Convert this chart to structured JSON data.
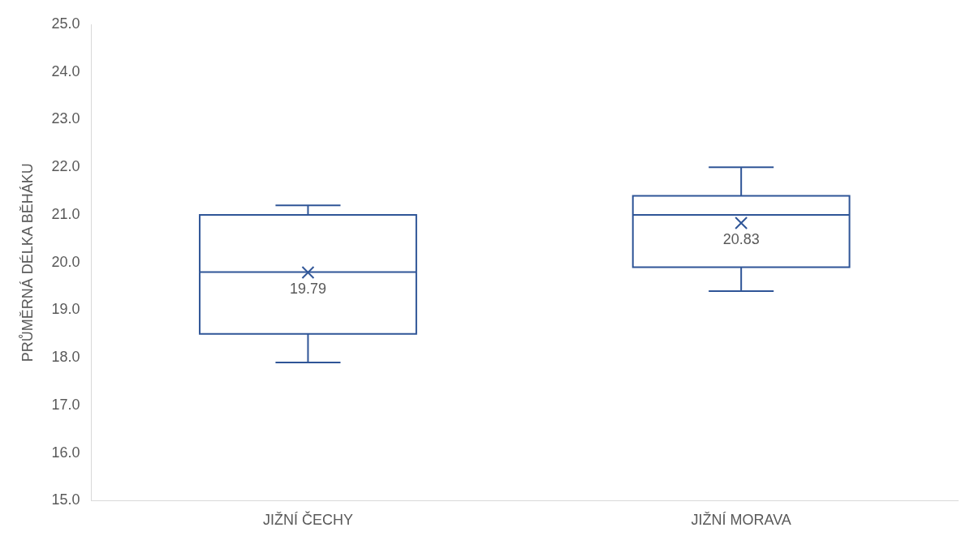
{
  "chart_data": {
    "type": "box",
    "ylabel": "PRŮMĚRNÁ DÉLKA BĚHÁKU",
    "categories": [
      "JIŽNÍ ČECHY",
      "JIŽNÍ MORAVA"
    ],
    "color": "#2f5597",
    "boxes": [
      {
        "low": 17.9,
        "q1": 18.5,
        "median": 19.8,
        "q3": 21.0,
        "high": 21.2,
        "mean": 19.79
      },
      {
        "low": 19.4,
        "q1": 19.9,
        "median": 21.0,
        "q3": 21.4,
        "high": 22.0,
        "mean": 20.83
      }
    ],
    "ylim": [
      15,
      25
    ],
    "yticks": [
      {
        "value": 15,
        "label": "15.0"
      },
      {
        "value": 16,
        "label": "16.0"
      },
      {
        "value": 17,
        "label": "17.0"
      },
      {
        "value": 18,
        "label": "18.0"
      },
      {
        "value": 19,
        "label": "19.0"
      },
      {
        "value": 20,
        "label": "20.0"
      },
      {
        "value": 21,
        "label": "21.0"
      },
      {
        "value": 22,
        "label": "22.0"
      },
      {
        "value": 23,
        "label": "23.0"
      },
      {
        "value": 24,
        "label": "24.0"
      },
      {
        "value": 25,
        "label": "25.0"
      }
    ],
    "marker": "cross",
    "grid": false,
    "legend": false,
    "annotations": [
      "19.79",
      "20.83"
    ]
  }
}
